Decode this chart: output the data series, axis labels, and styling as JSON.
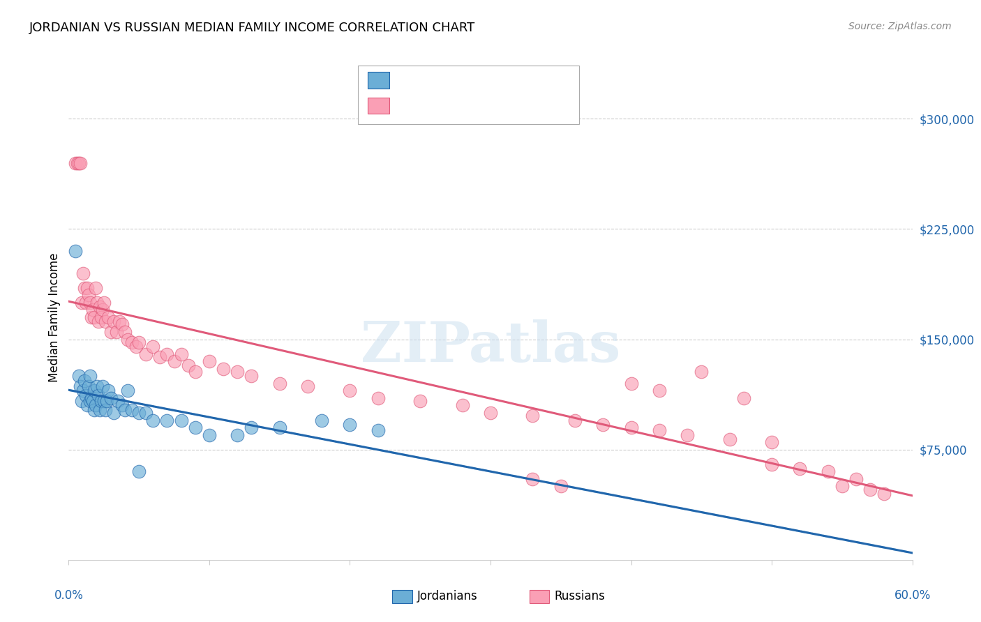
{
  "title": "JORDANIAN VS RUSSIAN MEDIAN FAMILY INCOME CORRELATION CHART",
  "source": "Source: ZipAtlas.com",
  "ylabel": "Median Family Income",
  "ytick_labels": [
    "$75,000",
    "$150,000",
    "$225,000",
    "$300,000"
  ],
  "ytick_values": [
    75000,
    150000,
    225000,
    300000
  ],
  "ymin": 0,
  "ymax": 330000,
  "xmin": 0.0,
  "xmax": 0.6,
  "blue_color": "#6baed6",
  "pink_color": "#fa9fb5",
  "trendline_blue": "#2166ac",
  "trendline_pink": "#e05a7a",
  "trendline_blue_dashed": "#a8cfe8",
  "jordanians_x": [
    0.005,
    0.007,
    0.008,
    0.009,
    0.01,
    0.011,
    0.012,
    0.013,
    0.014,
    0.015,
    0.015,
    0.016,
    0.017,
    0.018,
    0.018,
    0.019,
    0.02,
    0.021,
    0.022,
    0.023,
    0.024,
    0.025,
    0.026,
    0.027,
    0.028,
    0.03,
    0.032,
    0.035,
    0.038,
    0.04,
    0.042,
    0.045,
    0.05,
    0.055,
    0.06,
    0.07,
    0.08,
    0.09,
    0.1,
    0.12,
    0.13,
    0.15,
    0.18,
    0.2,
    0.22,
    0.05
  ],
  "jordanians_y": [
    210000,
    125000,
    118000,
    108000,
    115000,
    122000,
    112000,
    105000,
    118000,
    108000,
    125000,
    110000,
    108000,
    102000,
    115000,
    105000,
    118000,
    112000,
    102000,
    108000,
    118000,
    108000,
    102000,
    108000,
    115000,
    110000,
    100000,
    108000,
    105000,
    102000,
    115000,
    102000,
    100000,
    100000,
    95000,
    95000,
    95000,
    90000,
    85000,
    85000,
    90000,
    90000,
    95000,
    92000,
    88000,
    60000
  ],
  "russians_x": [
    0.005,
    0.006,
    0.007,
    0.008,
    0.009,
    0.01,
    0.011,
    0.012,
    0.013,
    0.014,
    0.015,
    0.016,
    0.017,
    0.018,
    0.019,
    0.02,
    0.021,
    0.022,
    0.023,
    0.024,
    0.025,
    0.026,
    0.028,
    0.03,
    0.032,
    0.034,
    0.036,
    0.038,
    0.04,
    0.042,
    0.045,
    0.048,
    0.05,
    0.055,
    0.06,
    0.065,
    0.07,
    0.075,
    0.08,
    0.085,
    0.09,
    0.1,
    0.11,
    0.12,
    0.13,
    0.15,
    0.17,
    0.2,
    0.22,
    0.25,
    0.28,
    0.3,
    0.33,
    0.36,
    0.38,
    0.4,
    0.42,
    0.44,
    0.47,
    0.5,
    0.33,
    0.35,
    0.4,
    0.42,
    0.45,
    0.48,
    0.5,
    0.52,
    0.55,
    0.57,
    0.54,
    0.56,
    0.58
  ],
  "russians_y": [
    270000,
    270000,
    270000,
    270000,
    175000,
    195000,
    185000,
    175000,
    185000,
    180000,
    175000,
    165000,
    170000,
    165000,
    185000,
    175000,
    162000,
    172000,
    165000,
    170000,
    175000,
    162000,
    165000,
    155000,
    162000,
    155000,
    162000,
    160000,
    155000,
    150000,
    148000,
    145000,
    148000,
    140000,
    145000,
    138000,
    140000,
    135000,
    140000,
    132000,
    128000,
    135000,
    130000,
    128000,
    125000,
    120000,
    118000,
    115000,
    110000,
    108000,
    105000,
    100000,
    98000,
    95000,
    92000,
    90000,
    88000,
    85000,
    82000,
    80000,
    55000,
    50000,
    120000,
    115000,
    128000,
    110000,
    65000,
    62000,
    50000,
    48000,
    60000,
    55000,
    45000
  ]
}
